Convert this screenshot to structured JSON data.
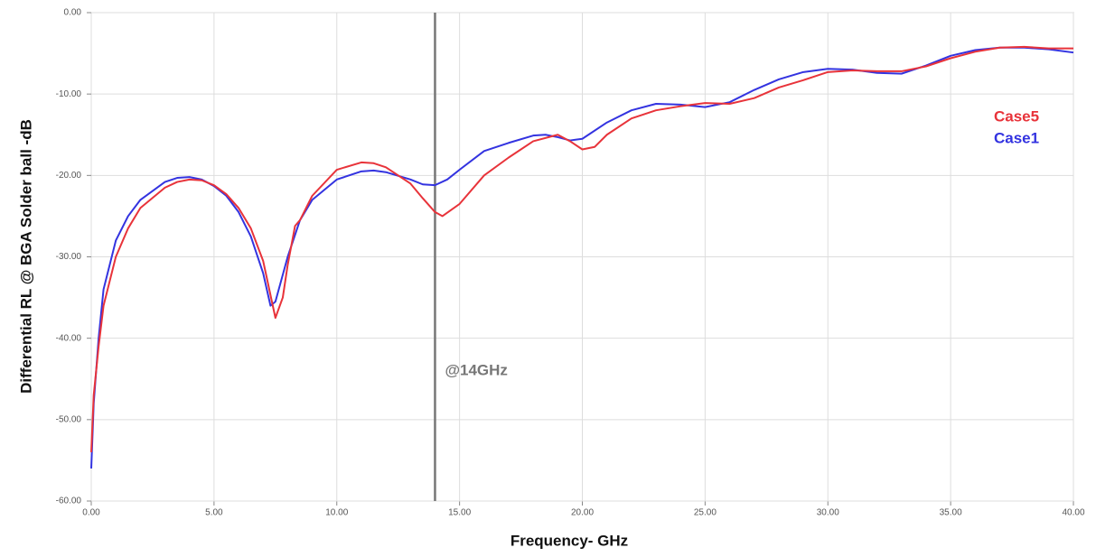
{
  "chart_data": {
    "type": "line",
    "xlabel": "Frequency- GHz",
    "ylabel": "Differential RL @ BGA Solder ball -dB",
    "xlim": [
      0,
      40
    ],
    "ylim": [
      -60,
      0
    ],
    "xticks": [
      {
        "value": 0,
        "label": "0.00"
      },
      {
        "value": 5,
        "label": "5.00"
      },
      {
        "value": 10,
        "label": "10.00"
      },
      {
        "value": 15,
        "label": "15.00"
      },
      {
        "value": 20,
        "label": "20.00"
      },
      {
        "value": 25,
        "label": "25.00"
      },
      {
        "value": 30,
        "label": "30.00"
      },
      {
        "value": 35,
        "label": "35.00"
      },
      {
        "value": 40,
        "label": "40.00"
      }
    ],
    "yticks": [
      {
        "value": 0,
        "label": "0.00"
      },
      {
        "value": -10,
        "label": "-10.00"
      },
      {
        "value": -20,
        "label": "-20.00"
      },
      {
        "value": -30,
        "label": "-30.00"
      },
      {
        "value": -40,
        "label": "-40.00"
      },
      {
        "value": -50,
        "label": "-50.00"
      },
      {
        "value": -60,
        "label": "-60.00"
      }
    ],
    "grid": true,
    "legend": "right",
    "annotation": {
      "text": "@14GHz",
      "x": 14
    },
    "series": [
      {
        "name": "Case5",
        "color": "#e8333a",
        "x": [
          0,
          0.1,
          0.3,
          0.5,
          1,
          1.5,
          2,
          3,
          3.5,
          4,
          4.5,
          5,
          5.5,
          6,
          6.5,
          7,
          7.5,
          7.8,
          8,
          8.3,
          8.5,
          9,
          10,
          11,
          11.5,
          12,
          13,
          13.5,
          14,
          14.3,
          15,
          16,
          17,
          18,
          19,
          19.5,
          20,
          20.5,
          21,
          22,
          23,
          24,
          25,
          26,
          27,
          28,
          29,
          30,
          31,
          32,
          33,
          34,
          35,
          36,
          37,
          38,
          39,
          40
        ],
        "values": [
          -54,
          -47,
          -41,
          -36,
          -30,
          -26.5,
          -24,
          -21.5,
          -20.8,
          -20.5,
          -20.6,
          -21.2,
          -22.3,
          -24,
          -26.5,
          -30.5,
          -37.5,
          -35,
          -31,
          -26.2,
          -25.5,
          -22.5,
          -19.3,
          -18.4,
          -18.5,
          -19,
          -21,
          -22.8,
          -24.5,
          -25,
          -23.5,
          -20,
          -17.8,
          -15.8,
          -15,
          -15.8,
          -16.8,
          -16.5,
          -15,
          -13,
          -12,
          -11.5,
          -11.1,
          -11.2,
          -10.5,
          -9.2,
          -8.3,
          -7.3,
          -7.1,
          -7.2,
          -7.2,
          -6.6,
          -5.6,
          -4.8,
          -4.3,
          -4.2,
          -4.4,
          -4.4
        ]
      },
      {
        "name": "Case1",
        "color": "#3333e0",
        "x": [
          0,
          0.1,
          0.3,
          0.5,
          1,
          1.5,
          2,
          3,
          3.5,
          4,
          4.5,
          5,
          5.5,
          6,
          6.5,
          7,
          7.3,
          7.5,
          8,
          8.5,
          9,
          10,
          11,
          11.5,
          12,
          13,
          13.5,
          14,
          14.5,
          15,
          16,
          17,
          18,
          18.5,
          19,
          19.5,
          20,
          21,
          22,
          23,
          24,
          25,
          26,
          27,
          28,
          29,
          30,
          31,
          32,
          33,
          34,
          35,
          36,
          37,
          38,
          39,
          40
        ],
        "values": [
          -56,
          -48,
          -40,
          -34,
          -28,
          -25,
          -23,
          -20.8,
          -20.3,
          -20.2,
          -20.5,
          -21.3,
          -22.5,
          -24.5,
          -27.5,
          -32,
          -36,
          -35.5,
          -30,
          -25.5,
          -23,
          -20.5,
          -19.5,
          -19.4,
          -19.6,
          -20.5,
          -21.1,
          -21.2,
          -20.5,
          -19.3,
          -17,
          -16,
          -15.1,
          -15,
          -15.3,
          -15.7,
          -15.5,
          -13.5,
          -12,
          -11.2,
          -11.3,
          -11.6,
          -11,
          -9.5,
          -8.2,
          -7.3,
          -6.9,
          -7,
          -7.4,
          -7.5,
          -6.5,
          -5.3,
          -4.6,
          -4.3,
          -4.3,
          -4.5,
          -4.9
        ]
      }
    ]
  }
}
